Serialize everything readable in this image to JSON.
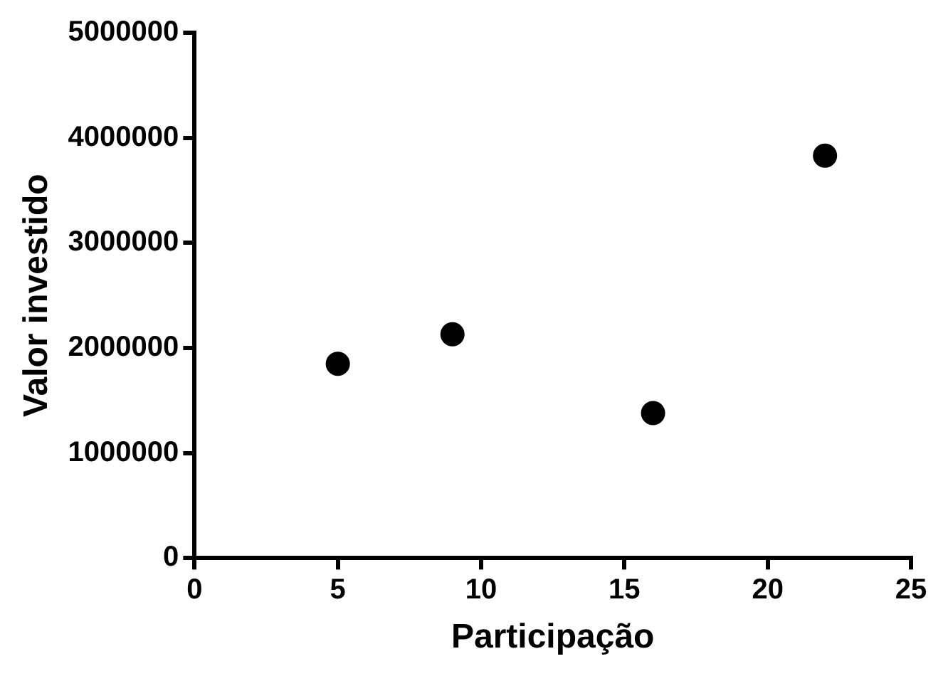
{
  "chart_data": {
    "type": "scatter",
    "xlabel": "Participação",
    "ylabel": "Valor investido",
    "x": [
      5,
      9,
      16,
      22
    ],
    "series": [
      {
        "color": "#000000",
        "values": [
          1850000,
          2130000,
          1380000,
          3830000
        ]
      }
    ],
    "xlim": [
      0,
      25
    ],
    "xticks": [
      0,
      5,
      10,
      15,
      20,
      25
    ],
    "ylim": [
      0,
      5000000
    ],
    "yticks": [
      0,
      1000000,
      2000000,
      3000000,
      4000000,
      5000000
    ],
    "grid": false,
    "legend": false,
    "marker": "circle"
  }
}
